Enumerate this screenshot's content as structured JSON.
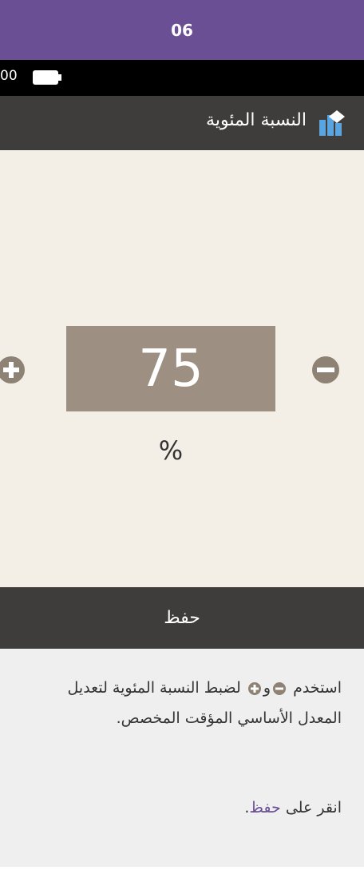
{
  "header": {
    "step": "06"
  },
  "status": {
    "time": "00"
  },
  "screen": {
    "title": "النسبة المئوية",
    "value": "75",
    "unit": "%",
    "save_button": "حفظ"
  },
  "instructions": {
    "line1": {
      "before": "استخدم",
      "middle": "و",
      "after": "لضبط النسبة المئوية لتعديل المعدل الأساسي المؤقت المخصص."
    },
    "line2": {
      "before": "انقر على",
      "link": "حفظ",
      "after": "."
    }
  }
}
